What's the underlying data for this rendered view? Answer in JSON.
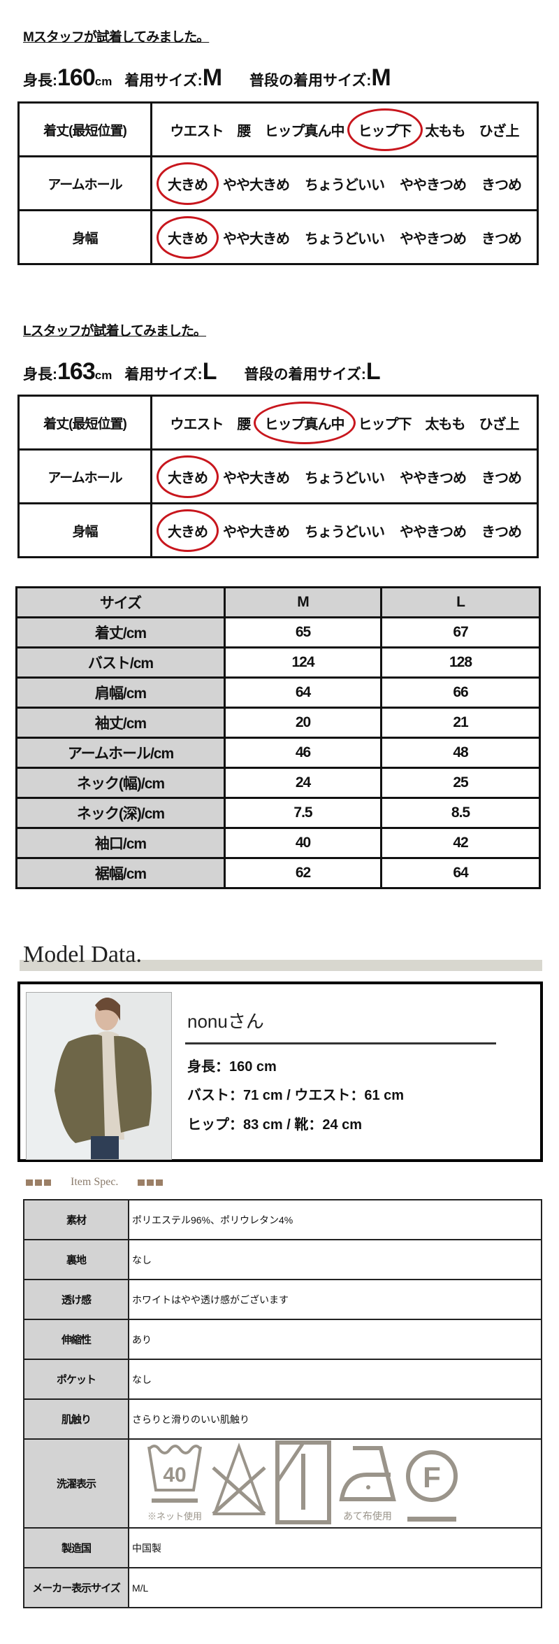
{
  "fit_sections": [
    {
      "title": "Mスタッフが試着してみました。",
      "height_label": "身長:",
      "height_value": "160",
      "height_unit": "cm",
      "size_label": "着用サイズ:",
      "size_value": "M",
      "usual_label": "普段の着用サイズ:",
      "usual_value": "M",
      "rows": [
        {
          "label": "着丈(最短位置)",
          "options": [
            "ウエスト",
            "腰",
            "ヒップ真ん中",
            "ヒップ下",
            "太もも",
            "ひざ上"
          ],
          "selected": 3
        },
        {
          "label": "アームホール",
          "options": [
            "大きめ",
            "やや大きめ",
            "ちょうどいい",
            "ややきつめ",
            "きつめ"
          ],
          "selected": 0
        },
        {
          "label": "身幅",
          "options": [
            "大きめ",
            "やや大きめ",
            "ちょうどいい",
            "ややきつめ",
            "きつめ"
          ],
          "selected": 0
        }
      ]
    },
    {
      "title": "Lスタッフが試着してみました。",
      "height_label": "身長:",
      "height_value": "163",
      "height_unit": "cm",
      "size_label": "着用サイズ:",
      "size_value": "L",
      "usual_label": "普段の着用サイズ:",
      "usual_value": "L",
      "rows": [
        {
          "label": "着丈(最短位置)",
          "options": [
            "ウエスト",
            "腰",
            "ヒップ真ん中",
            "ヒップ下",
            "太もも",
            "ひざ上"
          ],
          "selected": 2
        },
        {
          "label": "アームホール",
          "options": [
            "大きめ",
            "やや大きめ",
            "ちょうどいい",
            "ややきつめ",
            "きつめ"
          ],
          "selected": 0
        },
        {
          "label": "身幅",
          "options": [
            "大きめ",
            "やや大きめ",
            "ちょうどいい",
            "ややきつめ",
            "きつめ"
          ],
          "selected": 0
        }
      ]
    }
  ],
  "size_table": {
    "headers": [
      "サイズ",
      "M",
      "L"
    ],
    "rows": [
      [
        "着丈/cm",
        "65",
        "67"
      ],
      [
        "バスト/cm",
        "124",
        "128"
      ],
      [
        "肩幅/cm",
        "64",
        "66"
      ],
      [
        "袖丈/cm",
        "20",
        "21"
      ],
      [
        "アームホール/cm",
        "46",
        "48"
      ],
      [
        "ネック(幅)/cm",
        "24",
        "25"
      ],
      [
        "ネック(深)/cm",
        "7.5",
        "8.5"
      ],
      [
        "袖口/cm",
        "40",
        "42"
      ],
      [
        "裾幅/cm",
        "62",
        "64"
      ]
    ]
  },
  "model": {
    "section_title": "Model Data.",
    "name": "nonuさん",
    "stats": [
      "身長：160 cm",
      "バスト：71 cm / ウエスト：61 cm",
      "ヒップ：83 cm / 靴：24 cm"
    ]
  },
  "item_spec": {
    "title": "Item Spec.",
    "rows": [
      {
        "key": "素材",
        "value": "ポリエステル96%、ポリウレタン4%"
      },
      {
        "key": "裏地",
        "value": "なし"
      },
      {
        "key": "透け感",
        "value": "ホワイトはやや透け感がございます"
      },
      {
        "key": "伸縮性",
        "value": "あり"
      },
      {
        "key": "ポケット",
        "value": "なし"
      },
      {
        "key": "肌触り",
        "value": "さらりと滑りのいい肌触り"
      },
      {
        "key": "洗濯表示",
        "value": null,
        "wash": true
      },
      {
        "key": "製造国",
        "value": "中国製"
      },
      {
        "key": "メーカー表示サイズ",
        "value": "M/L"
      }
    ],
    "wash_symbols": {
      "icons": [
        "wash-tub-40-icon",
        "no-bleach-icon",
        "line-dry-shade-icon",
        "iron-low-with-cloth-icon",
        "dry-clean-f-icon"
      ],
      "temp": "40",
      "net_note": "※ネット使用",
      "iron_note": "あて布使用",
      "dryclean_letter": "F"
    }
  },
  "colors": {
    "circle": "#c8161d",
    "header_grey": "#d3d3d3",
    "symbol": "#9a948a",
    "accent_brown": "#9b7f66"
  }
}
